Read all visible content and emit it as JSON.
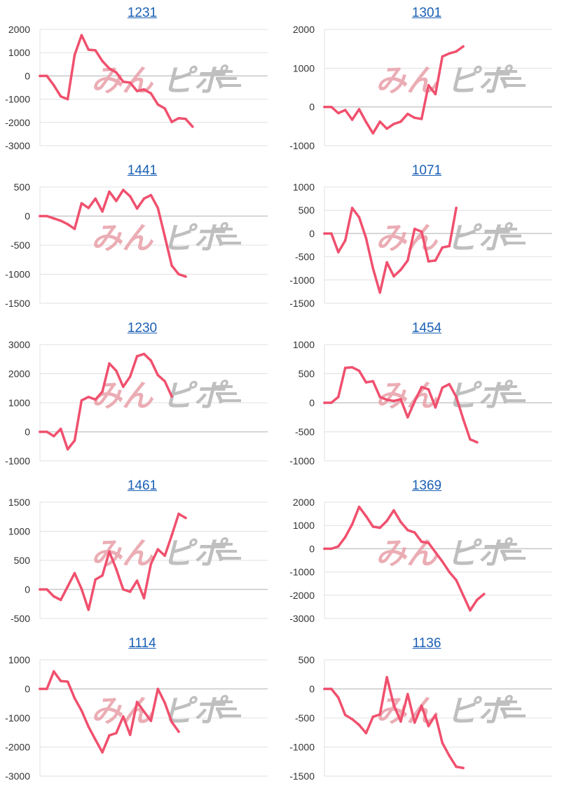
{
  "colors": {
    "line": "#f0506e",
    "title": "#1a5fb4",
    "grid": "#e0e0e0",
    "axis": "#c8c8c8"
  },
  "watermark": {
    "left": "みん",
    "right": "ピポ"
  },
  "chart_data": [
    {
      "type": "line",
      "title": "1231",
      "ylim": [
        -3000,
        2000
      ],
      "yticks": [
        2000,
        1000,
        0,
        -1000,
        -2000,
        -3000
      ],
      "values": [
        0,
        0,
        -400,
        -880,
        -1000,
        900,
        1750,
        1130,
        1100,
        640,
        320,
        150,
        -250,
        -290,
        -650,
        -580,
        -750,
        -1230,
        -1400,
        -1980,
        -1820,
        -1850,
        -2180
      ]
    },
    {
      "type": "line",
      "title": "1301",
      "ylim": [
        -1000,
        2000
      ],
      "yticks": [
        2000,
        1000,
        0,
        -1000
      ],
      "values": [
        0,
        0,
        -160,
        -80,
        -330,
        -60,
        -390,
        -680,
        -380,
        -560,
        -440,
        -380,
        -180,
        -280,
        -310,
        560,
        330,
        1300,
        1380,
        1430,
        1560
      ]
    },
    {
      "type": "line",
      "title": "1441",
      "ylim": [
        -1500,
        500
      ],
      "yticks": [
        500,
        0,
        -500,
        -1000,
        -1500
      ],
      "values": [
        0,
        0,
        -40,
        -80,
        -140,
        -220,
        220,
        140,
        300,
        80,
        420,
        260,
        450,
        340,
        130,
        300,
        360,
        140,
        -350,
        -850,
        -1000,
        -1040
      ]
    },
    {
      "type": "line",
      "title": "1071",
      "ylim": [
        -1500,
        1000
      ],
      "yticks": [
        1000,
        500,
        0,
        -500,
        -1000,
        -1500
      ],
      "values": [
        0,
        0,
        -400,
        -150,
        550,
        350,
        -100,
        -750,
        -1270,
        -620,
        -920,
        -780,
        -580,
        100,
        40,
        -600,
        -580,
        -300,
        -270,
        550
      ]
    },
    {
      "type": "line",
      "title": "1230",
      "ylim": [
        -1000,
        3000
      ],
      "yticks": [
        3000,
        2000,
        1000,
        0,
        -1000
      ],
      "values": [
        0,
        0,
        -150,
        100,
        -600,
        -300,
        1080,
        1200,
        1110,
        1380,
        2350,
        2100,
        1550,
        1900,
        2600,
        2680,
        2450,
        1950,
        1740,
        1220
      ]
    },
    {
      "type": "line",
      "title": "1454",
      "ylim": [
        -1000,
        1000
      ],
      "yticks": [
        1000,
        500,
        0,
        -500,
        -1000
      ],
      "values": [
        0,
        0,
        100,
        600,
        610,
        550,
        350,
        370,
        100,
        50,
        30,
        60,
        -250,
        20,
        270,
        230,
        -80,
        260,
        320,
        100,
        -280,
        -630,
        -680
      ]
    },
    {
      "type": "line",
      "title": "1461",
      "ylim": [
        -500,
        1500
      ],
      "yticks": [
        1500,
        1000,
        500,
        0,
        -500
      ],
      "values": [
        0,
        0,
        -120,
        -180,
        50,
        280,
        10,
        -350,
        170,
        240,
        650,
        350,
        0,
        -40,
        150,
        -150,
        440,
        690,
        580,
        930,
        1300,
        1230
      ]
    },
    {
      "type": "line",
      "title": "1369",
      "ylim": [
        -3000,
        2000
      ],
      "yticks": [
        2000,
        1000,
        0,
        -1000,
        -2000,
        -3000
      ],
      "values": [
        0,
        0,
        100,
        500,
        1050,
        1800,
        1400,
        950,
        900,
        1200,
        1650,
        1150,
        800,
        700,
        300,
        250,
        -150,
        -550,
        -1000,
        -1350,
        -2000,
        -2650,
        -2200,
        -1950
      ]
    },
    {
      "type": "line",
      "title": "1114",
      "ylim": [
        -3000,
        1000
      ],
      "yticks": [
        1000,
        0,
        -1000,
        -2000,
        -3000
      ],
      "values": [
        0,
        0,
        600,
        270,
        250,
        -320,
        -750,
        -1300,
        -1750,
        -2180,
        -1600,
        -1520,
        -950,
        -1580,
        -450,
        -780,
        -1100,
        0,
        -480,
        -1140,
        -1470
      ]
    },
    {
      "type": "line",
      "title": "1136",
      "ylim": [
        -1500,
        500
      ],
      "yticks": [
        500,
        0,
        -500,
        -1000,
        -1500
      ],
      "values": [
        0,
        0,
        -150,
        -450,
        -520,
        -620,
        -760,
        -480,
        -440,
        200,
        -280,
        -560,
        -90,
        -580,
        -290,
        -640,
        -450,
        -930,
        -1150,
        -1340,
        -1360
      ]
    }
  ]
}
